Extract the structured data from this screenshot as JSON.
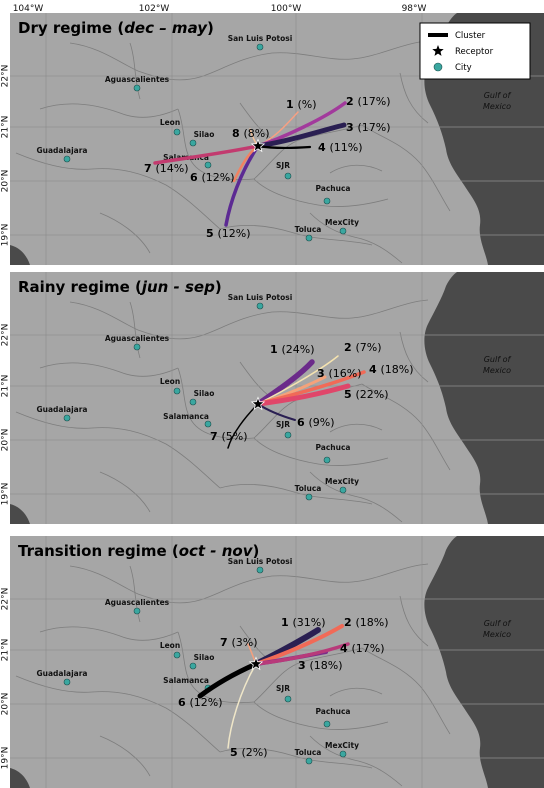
{
  "axis_labels": {
    "longitudes": [
      "104°W",
      "102°W",
      "100°W",
      "98°W"
    ],
    "latitudes": [
      "22°N",
      "21°N",
      "20°N",
      "19°N"
    ]
  },
  "legend": {
    "cluster": "Cluster",
    "receptor": "Receptor",
    "city": "City"
  },
  "gulf_label": [
    "Gulf of",
    "Mexico"
  ],
  "colors": {
    "land": "#a6a6a6",
    "sea": "#4a4a4a",
    "city": "#3aa7a0",
    "borders": "#7d7d7d",
    "grid": "#8f8f8f"
  },
  "cities": [
    {
      "name": "San Luis Potosi"
    },
    {
      "name": "Aguascalientes"
    },
    {
      "name": "Leon"
    },
    {
      "name": "Silao"
    },
    {
      "name": "Guadalajara"
    },
    {
      "name": "Salamanca"
    },
    {
      "name": "SJR"
    },
    {
      "name": "Pachuca"
    },
    {
      "name": "Toluca"
    },
    {
      "name": "MexCity"
    }
  ],
  "panels": [
    {
      "title": "Dry regime",
      "period": "dec – may",
      "clusters": [
        {
          "id": "1",
          "pct": "(%)",
          "color": "#f7a083"
        },
        {
          "id": "2",
          "pct": "(17%)",
          "color": "#a23a9c"
        },
        {
          "id": "3",
          "pct": "(17%)",
          "color": "#2a1f52"
        },
        {
          "id": "4",
          "pct": "(11%)",
          "color": "#000000"
        },
        {
          "id": "5",
          "pct": "(12%)",
          "color": "#5c2a93"
        },
        {
          "id": "6",
          "pct": "(12%)",
          "color": "#f28262"
        },
        {
          "id": "7",
          "pct": "(14%)",
          "color": "#c23b6f"
        },
        {
          "id": "8",
          "pct": "(8%)",
          "color": "#f4c29a"
        }
      ]
    },
    {
      "title": "Rainy regime",
      "period": "jun - sep",
      "clusters": [
        {
          "id": "1",
          "pct": "(24%)",
          "color": "#6b2a8a"
        },
        {
          "id": "2",
          "pct": "(7%)",
          "color": "#f5e3b0"
        },
        {
          "id": "3",
          "pct": "(16%)",
          "color": "#f5a27a"
        },
        {
          "id": "4",
          "pct": "(18%)",
          "color": "#f16a57"
        },
        {
          "id": "5",
          "pct": "(22%)",
          "color": "#e0466a"
        },
        {
          "id": "6",
          "pct": "(9%)",
          "color": "#2a1f52"
        },
        {
          "id": "7",
          "pct": "(5%)",
          "color": "#000000"
        }
      ]
    },
    {
      "title": "Transition regime",
      "period": "oct - nov",
      "clusters": [
        {
          "id": "1",
          "pct": "(31%)",
          "color": "#2a1f52"
        },
        {
          "id": "2",
          "pct": "(18%)",
          "color": "#f16a57"
        },
        {
          "id": "3",
          "pct": "(18%)",
          "color": "#7a2e8a"
        },
        {
          "id": "4",
          "pct": "(17%)",
          "color": "#b83a7a"
        },
        {
          "id": "5",
          "pct": "(2%)",
          "color": "#efe6c8"
        },
        {
          "id": "6",
          "pct": "(12%)",
          "color": "#000000"
        },
        {
          "id": "7",
          "pct": "(3%)",
          "color": "#f4a07e"
        }
      ]
    }
  ]
}
